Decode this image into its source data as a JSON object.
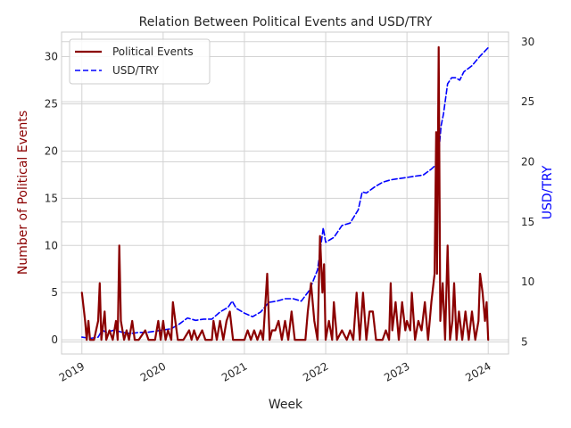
{
  "chart_data": {
    "type": "line",
    "title": "Relation Between Political Events and USD/TRY",
    "xlabel": "Week",
    "ylabel": "Number of Political Events",
    "y2label": "USD/TRY",
    "x_ticks": [
      "2019",
      "2020",
      "2021",
      "2022",
      "2023",
      "2024"
    ],
    "y_ticks": [
      "0",
      "5",
      "10",
      "15",
      "20",
      "25",
      "30"
    ],
    "y2_ticks": [
      "5",
      "10",
      "15",
      "20",
      "25",
      "30"
    ],
    "xlim": [
      2018.75,
      2024.25
    ],
    "ylim": [
      -1.5,
      32.6
    ],
    "y2lim": [
      4.0,
      30.8
    ],
    "grid": true,
    "legend_position": "upper-left",
    "series": [
      {
        "name": "Political Events",
        "axis": "left",
        "color": "#8b0000",
        "style": "solid",
        "points": [
          [
            2019.0,
            5
          ],
          [
            2019.04,
            2
          ],
          [
            2019.06,
            0
          ],
          [
            2019.08,
            2
          ],
          [
            2019.1,
            0
          ],
          [
            2019.15,
            0
          ],
          [
            2019.2,
            2
          ],
          [
            2019.22,
            6
          ],
          [
            2019.24,
            0
          ],
          [
            2019.28,
            3
          ],
          [
            2019.3,
            0
          ],
          [
            2019.34,
            1
          ],
          [
            2019.38,
            0
          ],
          [
            2019.42,
            2
          ],
          [
            2019.44,
            0
          ],
          [
            2019.46,
            10
          ],
          [
            2019.48,
            2
          ],
          [
            2019.52,
            0
          ],
          [
            2019.55,
            1
          ],
          [
            2019.58,
            0
          ],
          [
            2019.62,
            2
          ],
          [
            2019.65,
            0
          ],
          [
            2019.7,
            0
          ],
          [
            2019.78,
            1
          ],
          [
            2019.82,
            0
          ],
          [
            2019.9,
            0
          ],
          [
            2019.94,
            2
          ],
          [
            2019.97,
            0
          ],
          [
            2020.0,
            2
          ],
          [
            2020.03,
            0
          ],
          [
            2020.06,
            1
          ],
          [
            2020.1,
            0
          ],
          [
            2020.12,
            4
          ],
          [
            2020.15,
            2
          ],
          [
            2020.18,
            0
          ],
          [
            2020.25,
            0
          ],
          [
            2020.32,
            1
          ],
          [
            2020.35,
            0
          ],
          [
            2020.38,
            1
          ],
          [
            2020.42,
            0
          ],
          [
            2020.48,
            1
          ],
          [
            2020.52,
            0
          ],
          [
            2020.6,
            0
          ],
          [
            2020.62,
            2
          ],
          [
            2020.66,
            0
          ],
          [
            2020.7,
            2
          ],
          [
            2020.74,
            0
          ],
          [
            2020.78,
            2
          ],
          [
            2020.82,
            3
          ],
          [
            2020.86,
            0
          ],
          [
            2020.92,
            0
          ],
          [
            2021.0,
            0
          ],
          [
            2021.04,
            1
          ],
          [
            2021.08,
            0
          ],
          [
            2021.12,
            1
          ],
          [
            2021.16,
            0
          ],
          [
            2021.2,
            1
          ],
          [
            2021.23,
            0
          ],
          [
            2021.28,
            7
          ],
          [
            2021.31,
            0
          ],
          [
            2021.34,
            1
          ],
          [
            2021.38,
            1
          ],
          [
            2021.42,
            2
          ],
          [
            2021.46,
            0
          ],
          [
            2021.5,
            2
          ],
          [
            2021.54,
            0
          ],
          [
            2021.58,
            3
          ],
          [
            2021.62,
            0
          ],
          [
            2021.7,
            0
          ],
          [
            2021.75,
            0
          ],
          [
            2021.78,
            3
          ],
          [
            2021.82,
            6
          ],
          [
            2021.86,
            2
          ],
          [
            2021.9,
            0
          ],
          [
            2021.93,
            11
          ],
          [
            2021.96,
            5
          ],
          [
            2021.98,
            8
          ],
          [
            2022.0,
            0
          ],
          [
            2022.04,
            2
          ],
          [
            2022.08,
            0
          ],
          [
            2022.1,
            4
          ],
          [
            2022.14,
            0
          ],
          [
            2022.2,
            1
          ],
          [
            2022.26,
            0
          ],
          [
            2022.3,
            1
          ],
          [
            2022.34,
            0
          ],
          [
            2022.38,
            5
          ],
          [
            2022.42,
            0
          ],
          [
            2022.46,
            5
          ],
          [
            2022.5,
            0
          ],
          [
            2022.54,
            3
          ],
          [
            2022.58,
            3
          ],
          [
            2022.62,
            0
          ],
          [
            2022.7,
            0
          ],
          [
            2022.74,
            1
          ],
          [
            2022.78,
            0
          ],
          [
            2022.8,
            6
          ],
          [
            2022.82,
            1
          ],
          [
            2022.86,
            4
          ],
          [
            2022.9,
            0
          ],
          [
            2022.94,
            4
          ],
          [
            2022.98,
            1
          ],
          [
            2023.0,
            2
          ],
          [
            2023.04,
            1
          ],
          [
            2023.06,
            5
          ],
          [
            2023.1,
            0
          ],
          [
            2023.14,
            2
          ],
          [
            2023.18,
            1
          ],
          [
            2023.22,
            4
          ],
          [
            2023.26,
            0
          ],
          [
            2023.3,
            4
          ],
          [
            2023.34,
            7
          ],
          [
            2023.36,
            22
          ],
          [
            2023.37,
            7
          ],
          [
            2023.39,
            31
          ],
          [
            2023.41,
            2
          ],
          [
            2023.44,
            6
          ],
          [
            2023.47,
            0
          ],
          [
            2023.5,
            10
          ],
          [
            2023.53,
            0
          ],
          [
            2023.56,
            2
          ],
          [
            2023.58,
            6
          ],
          [
            2023.61,
            0
          ],
          [
            2023.64,
            3
          ],
          [
            2023.68,
            0
          ],
          [
            2023.72,
            3
          ],
          [
            2023.76,
            0
          ],
          [
            2023.8,
            3
          ],
          [
            2023.84,
            0
          ],
          [
            2023.88,
            2
          ],
          [
            2023.9,
            7
          ],
          [
            2023.93,
            5
          ],
          [
            2023.96,
            2
          ],
          [
            2023.98,
            4
          ],
          [
            2024.0,
            0
          ]
        ]
      },
      {
        "name": "USD/TRY",
        "axis": "right",
        "color": "#0000ff",
        "style": "dashed",
        "points": [
          [
            2019.0,
            5.4
          ],
          [
            2019.1,
            5.3
          ],
          [
            2019.2,
            5.4
          ],
          [
            2019.25,
            6.0
          ],
          [
            2019.3,
            5.8
          ],
          [
            2019.4,
            6.0
          ],
          [
            2019.5,
            5.8
          ],
          [
            2019.6,
            5.7
          ],
          [
            2019.7,
            5.8
          ],
          [
            2019.8,
            5.8
          ],
          [
            2019.9,
            5.9
          ],
          [
            2020.0,
            6.0
          ],
          [
            2020.1,
            6.1
          ],
          [
            2020.2,
            6.5
          ],
          [
            2020.3,
            7.0
          ],
          [
            2020.4,
            6.8
          ],
          [
            2020.5,
            6.9
          ],
          [
            2020.6,
            6.9
          ],
          [
            2020.7,
            7.5
          ],
          [
            2020.8,
            7.9
          ],
          [
            2020.85,
            8.4
          ],
          [
            2020.9,
            7.8
          ],
          [
            2021.0,
            7.4
          ],
          [
            2021.1,
            7.1
          ],
          [
            2021.2,
            7.5
          ],
          [
            2021.3,
            8.3
          ],
          [
            2021.4,
            8.4
          ],
          [
            2021.5,
            8.6
          ],
          [
            2021.6,
            8.6
          ],
          [
            2021.7,
            8.4
          ],
          [
            2021.8,
            9.3
          ],
          [
            2021.9,
            11.0
          ],
          [
            2021.97,
            14.5
          ],
          [
            2022.0,
            13.3
          ],
          [
            2022.1,
            13.7
          ],
          [
            2022.2,
            14.7
          ],
          [
            2022.3,
            14.9
          ],
          [
            2022.4,
            16.0
          ],
          [
            2022.45,
            17.5
          ],
          [
            2022.5,
            17.4
          ],
          [
            2022.6,
            17.9
          ],
          [
            2022.7,
            18.3
          ],
          [
            2022.8,
            18.5
          ],
          [
            2022.9,
            18.6
          ],
          [
            2023.0,
            18.7
          ],
          [
            2023.1,
            18.8
          ],
          [
            2023.2,
            18.9
          ],
          [
            2023.3,
            19.4
          ],
          [
            2023.38,
            19.9
          ],
          [
            2023.42,
            23.0
          ],
          [
            2023.45,
            24.0
          ],
          [
            2023.5,
            26.5
          ],
          [
            2023.55,
            27.0
          ],
          [
            2023.6,
            27.0
          ],
          [
            2023.65,
            26.8
          ],
          [
            2023.7,
            27.5
          ],
          [
            2023.8,
            28.0
          ],
          [
            2023.9,
            28.8
          ],
          [
            2024.0,
            29.5
          ]
        ]
      }
    ]
  }
}
